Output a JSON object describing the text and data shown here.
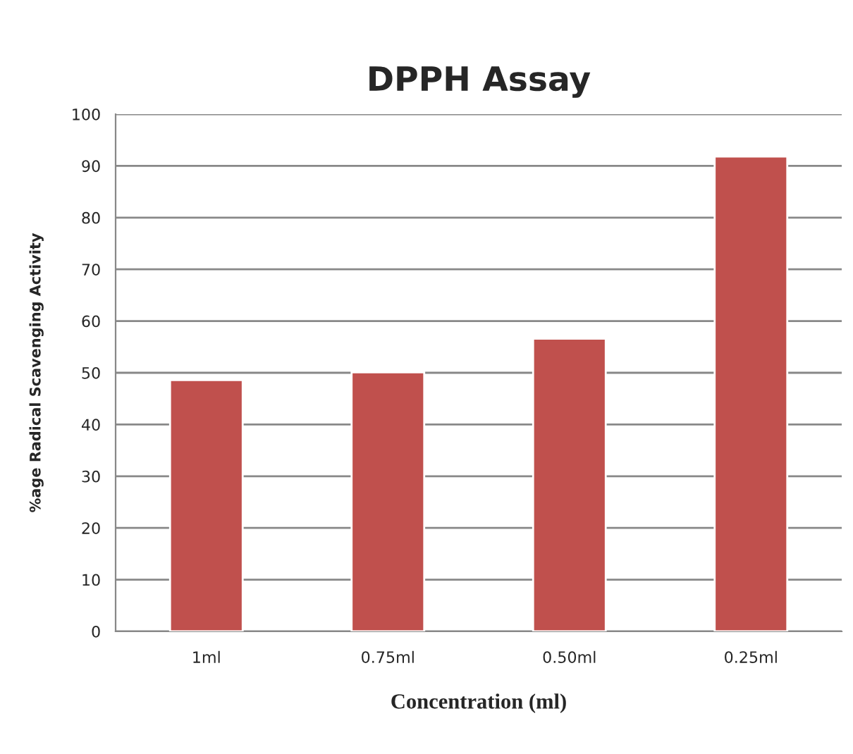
{
  "chart_data": {
    "type": "bar",
    "title": "DPPH Assay",
    "xlabel": "Concentration (ml)",
    "ylabel": "%age Radical Scavenging Activity",
    "categories": [
      "1ml",
      "0.75ml",
      "0.50ml",
      "0.25ml"
    ],
    "series": [
      {
        "color": "#c0504d",
        "values": [
          48.6,
          50.1,
          56.6,
          91.8
        ]
      }
    ],
    "ylim": [
      0,
      100
    ],
    "yticks": [
      0,
      10,
      20,
      30,
      40,
      50,
      60,
      70,
      80,
      90,
      100
    ],
    "grid": "y",
    "legend": false
  }
}
